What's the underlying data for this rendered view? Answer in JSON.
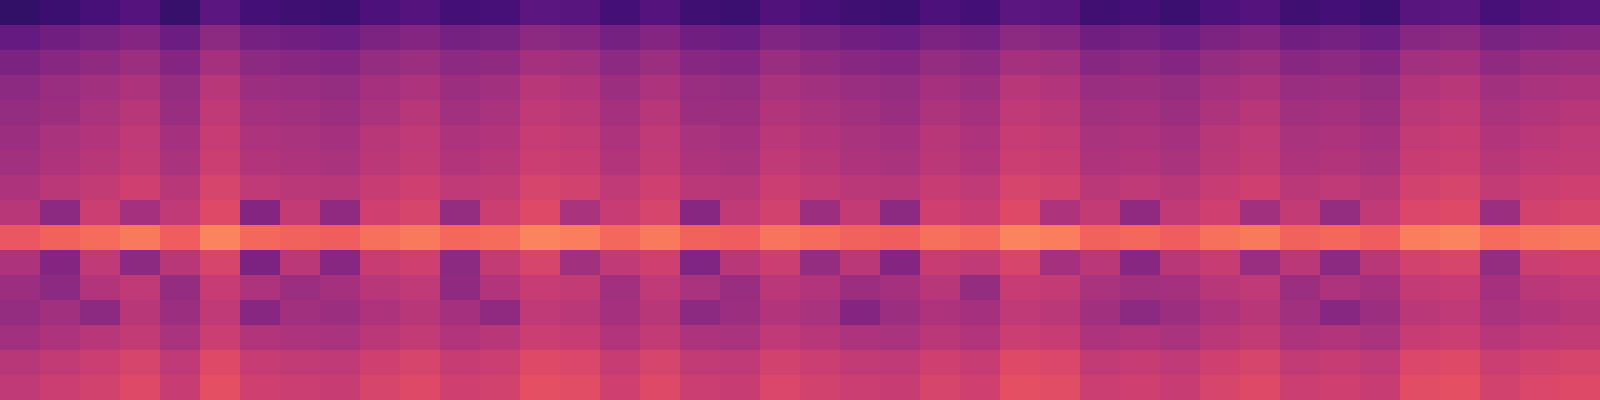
{
  "chart_data": {
    "type": "heatmap",
    "tick_labels": false,
    "zlim": [
      0,
      100
    ],
    "cells": [
      [
        18,
        20,
        23,
        26,
        19,
        28,
        22,
        21,
        20,
        24,
        26,
        22,
        23,
        28,
        27,
        22,
        26,
        21,
        20,
        25,
        23,
        21,
        20,
        24,
        22,
        28,
        27,
        21,
        22,
        20,
        24,
        26,
        21,
        22,
        20,
        27,
        28,
        23,
        25,
        26
      ],
      [
        30,
        33,
        35,
        38,
        32,
        40,
        34,
        33,
        32,
        36,
        38,
        34,
        35,
        40,
        39,
        34,
        38,
        33,
        32,
        37,
        35,
        33,
        32,
        36,
        34,
        40,
        39,
        33,
        34,
        32,
        36,
        38,
        33,
        34,
        32,
        39,
        40,
        35,
        37,
        38
      ],
      [
        36,
        39,
        41,
        44,
        38,
        46,
        40,
        39,
        38,
        42,
        44,
        40,
        41,
        46,
        45,
        40,
        44,
        39,
        38,
        43,
        41,
        39,
        38,
        42,
        40,
        46,
        45,
        39,
        40,
        38,
        42,
        44,
        39,
        40,
        38,
        45,
        46,
        41,
        43,
        44
      ],
      [
        40,
        43,
        45,
        48,
        42,
        50,
        44,
        43,
        42,
        46,
        48,
        44,
        45,
        50,
        49,
        44,
        48,
        43,
        42,
        47,
        45,
        43,
        42,
        46,
        44,
        50,
        49,
        43,
        44,
        42,
        46,
        48,
        43,
        44,
        42,
        49,
        50,
        45,
        47,
        48
      ],
      [
        42,
        44,
        47,
        50,
        43,
        52,
        46,
        45,
        44,
        47,
        50,
        45,
        47,
        52,
        51,
        46,
        50,
        44,
        44,
        49,
        47,
        45,
        43,
        48,
        46,
        52,
        51,
        45,
        46,
        44,
        48,
        50,
        45,
        46,
        44,
        51,
        52,
        47,
        49,
        50
      ],
      [
        44,
        47,
        49,
        52,
        46,
        54,
        48,
        47,
        46,
        50,
        52,
        48,
        49,
        54,
        53,
        48,
        52,
        47,
        46,
        51,
        49,
        47,
        46,
        50,
        48,
        54,
        53,
        47,
        48,
        46,
        50,
        52,
        47,
        48,
        46,
        53,
        54,
        49,
        51,
        52
      ],
      [
        45,
        48,
        50,
        53,
        47,
        55,
        49,
        48,
        47,
        51,
        53,
        49,
        50,
        55,
        54,
        49,
        53,
        48,
        47,
        52,
        50,
        48,
        47,
        51,
        49,
        55,
        54,
        48,
        49,
        47,
        51,
        53,
        48,
        49,
        47,
        54,
        55,
        50,
        52,
        53
      ],
      [
        48,
        51,
        53,
        56,
        50,
        58,
        52,
        51,
        50,
        54,
        56,
        52,
        53,
        58,
        57,
        52,
        56,
        51,
        50,
        55,
        53,
        51,
        50,
        54,
        52,
        58,
        57,
        51,
        52,
        50,
        54,
        56,
        51,
        52,
        50,
        57,
        58,
        53,
        55,
        56
      ],
      [
        50,
        40,
        55,
        46,
        52,
        60,
        38,
        53,
        41,
        56,
        58,
        42,
        55,
        60,
        47,
        54,
        58,
        39,
        52,
        57,
        44,
        53,
        40,
        56,
        54,
        60,
        48,
        53,
        41,
        52,
        56,
        45,
        53,
        42,
        52,
        59,
        60,
        44,
        57,
        58
      ],
      [
        64,
        67,
        69,
        72,
        66,
        74,
        68,
        67,
        66,
        70,
        72,
        68,
        69,
        74,
        73,
        68,
        72,
        67,
        66,
        71,
        69,
        67,
        66,
        70,
        68,
        74,
        73,
        67,
        68,
        66,
        70,
        72,
        67,
        68,
        66,
        73,
        74,
        69,
        71,
        72
      ],
      [
        48,
        38,
        52,
        40,
        50,
        58,
        36,
        51,
        39,
        54,
        56,
        40,
        53,
        58,
        45,
        52,
        56,
        37,
        50,
        55,
        42,
        51,
        38,
        54,
        52,
        58,
        46,
        51,
        39,
        50,
        54,
        43,
        51,
        40,
        50,
        57,
        58,
        42,
        55,
        56
      ],
      [
        44,
        40,
        49,
        52,
        42,
        54,
        48,
        44,
        46,
        50,
        52,
        41,
        49,
        54,
        53,
        45,
        52,
        47,
        43,
        51,
        49,
        44,
        46,
        50,
        42,
        54,
        53,
        47,
        45,
        46,
        50,
        52,
        44,
        48,
        46,
        53,
        54,
        46,
        51,
        52
      ],
      [
        42,
        45,
        40,
        50,
        44,
        52,
        39,
        45,
        44,
        48,
        50,
        46,
        41,
        52,
        51,
        46,
        50,
        40,
        44,
        49,
        47,
        38,
        44,
        48,
        46,
        52,
        51,
        45,
        40,
        44,
        48,
        50,
        45,
        39,
        44,
        51,
        52,
        47,
        49,
        50
      ],
      [
        45,
        48,
        50,
        53,
        47,
        55,
        49,
        48,
        47,
        51,
        53,
        49,
        50,
        55,
        54,
        49,
        53,
        48,
        47,
        52,
        50,
        48,
        47,
        51,
        49,
        55,
        54,
        48,
        49,
        47,
        51,
        53,
        48,
        49,
        47,
        54,
        55,
        50,
        52,
        53
      ],
      [
        50,
        53,
        55,
        58,
        52,
        60,
        54,
        53,
        52,
        56,
        58,
        54,
        55,
        60,
        59,
        54,
        58,
        53,
        52,
        57,
        55,
        53,
        52,
        56,
        54,
        60,
        59,
        53,
        54,
        52,
        56,
        58,
        53,
        54,
        52,
        59,
        60,
        55,
        57,
        58
      ],
      [
        52,
        55,
        57,
        60,
        54,
        62,
        56,
        55,
        54,
        58,
        60,
        56,
        57,
        62,
        61,
        56,
        60,
        55,
        54,
        59,
        57,
        55,
        54,
        58,
        56,
        62,
        61,
        55,
        56,
        54,
        58,
        60,
        55,
        56,
        54,
        61,
        62,
        57,
        59,
        60
      ]
    ]
  }
}
